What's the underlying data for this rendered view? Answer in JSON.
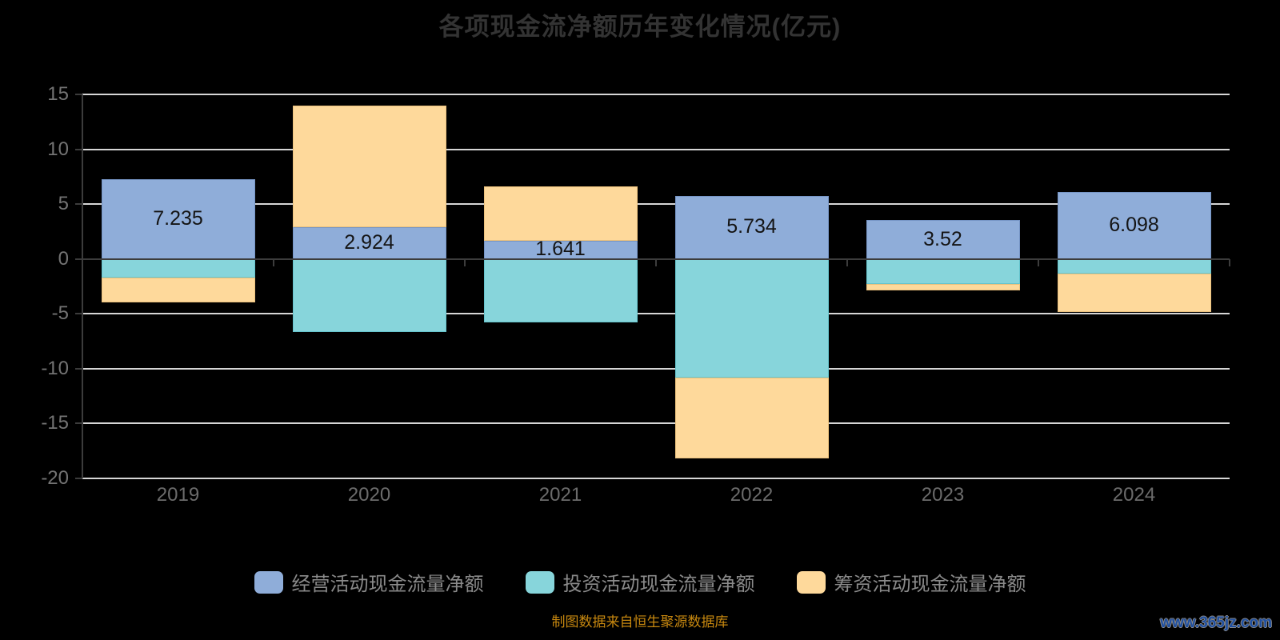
{
  "title": "各项现金流净额历年变化情况(亿元)",
  "footer": {
    "source_note": "制图数据来自恒生聚源数据库",
    "watermark": "www.365jz.com"
  },
  "colors": {
    "background": "#000000",
    "title": "#333333",
    "gridline": "#d6d6d6",
    "axis_line": "#3c3c3c",
    "axis_label": "#737373",
    "legend_text": "#8a8a8a",
    "data_label": "#141414",
    "source_note": "#c6870f",
    "watermark": "#1f4fa0"
  },
  "chart_data": {
    "type": "bar",
    "stacked": true,
    "title": "各项现金流净额历年变化情况(亿元)",
    "categories": [
      "2019",
      "2020",
      "2021",
      "2022",
      "2023",
      "2024"
    ],
    "series": [
      {
        "name": "经营活动现金流量净额",
        "color": "#8fadd9",
        "border": "#7695c5",
        "values": [
          7.235,
          2.924,
          1.641,
          5.734,
          3.52,
          6.098
        ],
        "labels": [
          "7.235",
          "2.924",
          "1.641",
          "5.734",
          "3.52",
          "6.098"
        ]
      },
      {
        "name": "投资活动现金流量净额",
        "color": "#87d5db",
        "border": "#66c4cd",
        "values": [
          -1.7,
          -6.65,
          -5.75,
          -10.8,
          -2.28,
          -1.33
        ]
      },
      {
        "name": "筹资活动现金流量净额",
        "color": "#fed99b",
        "border": "#ecc27d",
        "values": [
          -2.26,
          11.08,
          5.0,
          -7.4,
          -0.61,
          -3.5
        ]
      }
    ],
    "xlabel": "",
    "ylabel": "",
    "ylim": [
      -20,
      15
    ],
    "yticks": [
      15,
      10,
      5,
      0,
      -5,
      -10,
      -15,
      -20
    ],
    "grid": true,
    "legend_position": "bottom"
  }
}
